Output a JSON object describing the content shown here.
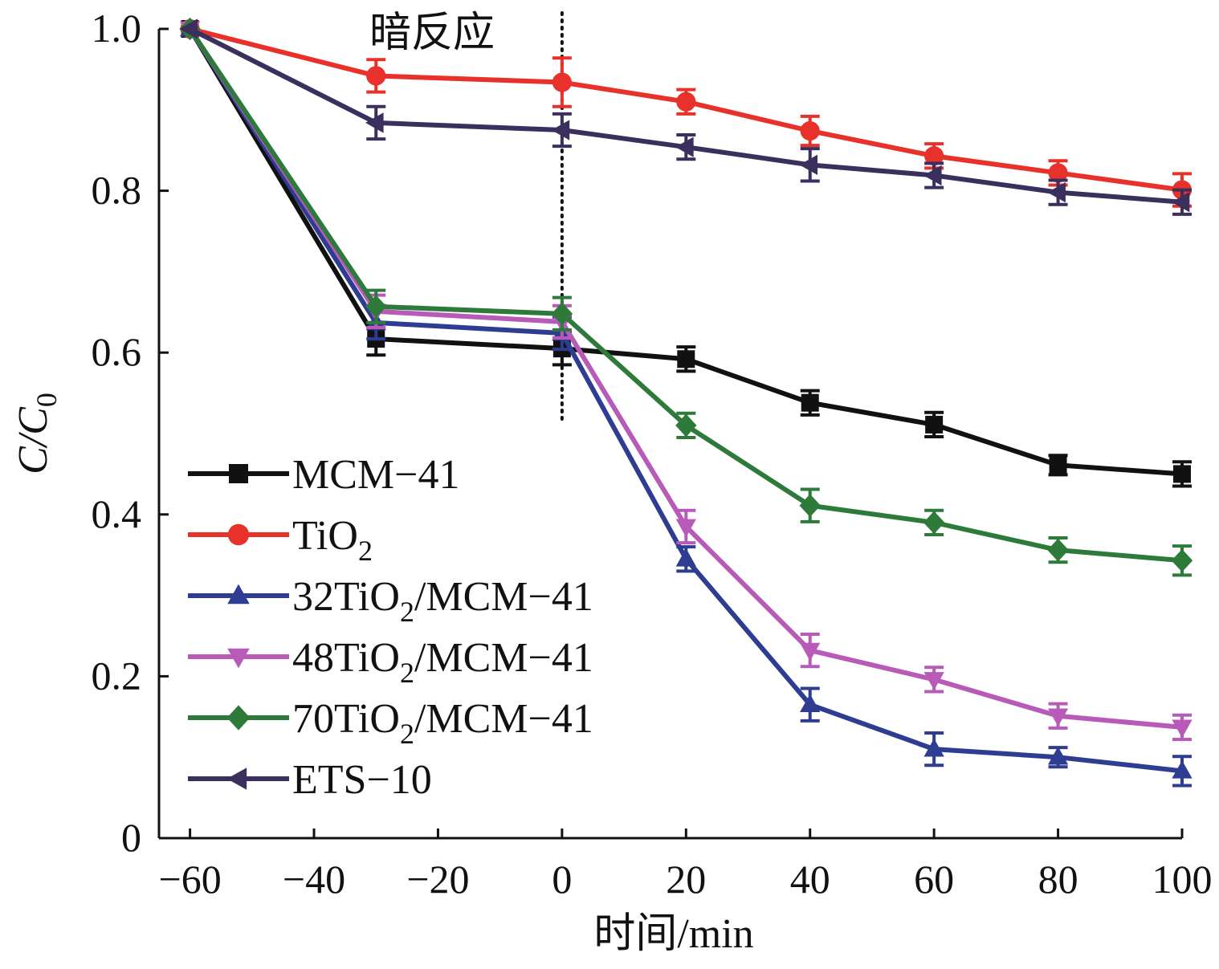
{
  "chart_data": {
    "type": "line",
    "xlabel": "时间/min",
    "ylabel": {
      "base": "C/C",
      "subscript": "0"
    },
    "xlim": [
      -65,
      100
    ],
    "ylim": [
      0,
      1.0
    ],
    "xticks": [
      -60,
      -40,
      -20,
      0,
      20,
      40,
      60,
      80,
      100
    ],
    "xtick_labels": [
      "−60",
      "−40",
      "−20",
      "0",
      "20",
      "40",
      "60",
      "80",
      "100"
    ],
    "yticks": [
      0,
      0.2,
      0.4,
      0.6,
      0.8,
      1.0
    ],
    "ytick_labels": [
      "0",
      "0.2",
      "0.4",
      "0.6",
      "0.8",
      "1.0"
    ],
    "annotation": {
      "text": "暗反应",
      "marker_line_x": 0,
      "style": "dotted"
    },
    "legend_position": "lower-left",
    "grid": false,
    "x": [
      -60,
      -30,
      0,
      20,
      40,
      60,
      80,
      100
    ],
    "series": [
      {
        "name": "MCM−41",
        "legend_label": {
          "base": "MCM−41",
          "sub": "",
          "rest": ""
        },
        "color": "#111111",
        "marker": "square",
        "values": [
          1.0,
          0.617,
          0.605,
          0.592,
          0.538,
          0.511,
          0.461,
          0.45
        ],
        "errors": [
          0.0,
          0.02,
          0.02,
          0.015,
          0.015,
          0.015,
          0.012,
          0.015
        ]
      },
      {
        "name": "TiO2",
        "legend_label": {
          "base": "TiO",
          "sub": "2",
          "rest": ""
        },
        "color": "#e8312a",
        "marker": "circle",
        "values": [
          1.0,
          0.942,
          0.934,
          0.91,
          0.874,
          0.843,
          0.822,
          0.801
        ],
        "errors": [
          0.0,
          0.02,
          0.03,
          0.015,
          0.018,
          0.015,
          0.015,
          0.02
        ]
      },
      {
        "name": "32TiO2/MCM−41",
        "legend_label": {
          "base": "32TiO",
          "sub": "2",
          "rest": "/MCM−41"
        },
        "color": "#2e3d92",
        "marker": "triangle-up",
        "values": [
          1.0,
          0.637,
          0.624,
          0.345,
          0.165,
          0.11,
          0.1,
          0.083
        ],
        "errors": [
          0.0,
          0.02,
          0.02,
          0.015,
          0.02,
          0.02,
          0.012,
          0.018
        ]
      },
      {
        "name": "48TiO2/MCM−41",
        "legend_label": {
          "base": "48TiO",
          "sub": "2",
          "rest": "/MCM−41"
        },
        "color": "#b75ab8",
        "marker": "triangle-down",
        "values": [
          1.0,
          0.651,
          0.638,
          0.385,
          0.232,
          0.196,
          0.151,
          0.137
        ],
        "errors": [
          0.0,
          0.02,
          0.02,
          0.02,
          0.02,
          0.015,
          0.015,
          0.015
        ]
      },
      {
        "name": "70TiO2/MCM−41",
        "legend_label": {
          "base": "70TiO",
          "sub": "2",
          "rest": "/MCM−41"
        },
        "color": "#2e7a3a",
        "marker": "diamond",
        "values": [
          1.0,
          0.657,
          0.648,
          0.51,
          0.411,
          0.39,
          0.356,
          0.343
        ],
        "errors": [
          0.0,
          0.02,
          0.02,
          0.015,
          0.02,
          0.015,
          0.015,
          0.018
        ]
      },
      {
        "name": "ETS−10",
        "legend_label": {
          "base": "ETS−10",
          "sub": "",
          "rest": ""
        },
        "color": "#3b2f5e",
        "marker": "triangle-left",
        "values": [
          1.0,
          0.884,
          0.875,
          0.854,
          0.832,
          0.819,
          0.798,
          0.786
        ],
        "errors": [
          0.0,
          0.02,
          0.02,
          0.015,
          0.02,
          0.015,
          0.015,
          0.015
        ]
      }
    ]
  }
}
